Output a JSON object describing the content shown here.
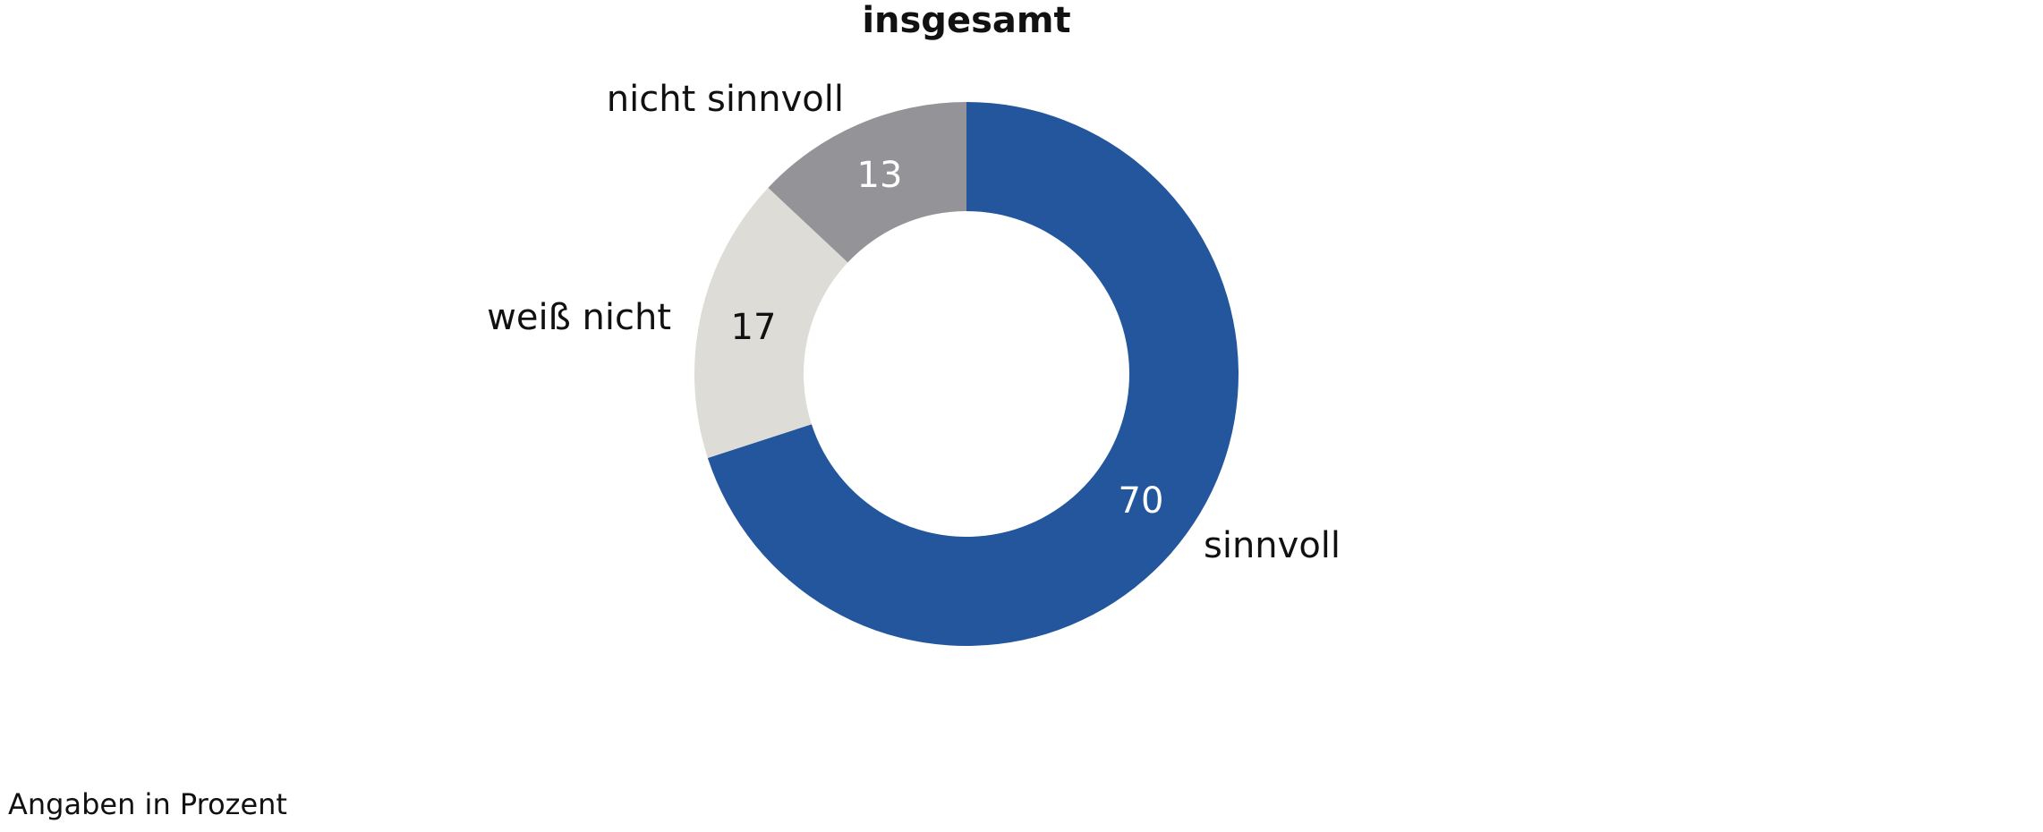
{
  "chart_data": {
    "type": "pie",
    "variant": "donut",
    "title": "insgesamt",
    "note": "Angaben in Prozent",
    "start": "top",
    "direction": "clockwise",
    "slices": [
      {
        "label": "sinnvoll",
        "value": 70,
        "color": "#23569c",
        "value_color": "#ffffff"
      },
      {
        "label": "weiß nicht",
        "value": 17,
        "color": "#dddcd7",
        "value_color": "#111111"
      },
      {
        "label": "nicht sinnvoll",
        "value": 13,
        "color": "#949398",
        "value_color": "#ffffff"
      }
    ]
  }
}
